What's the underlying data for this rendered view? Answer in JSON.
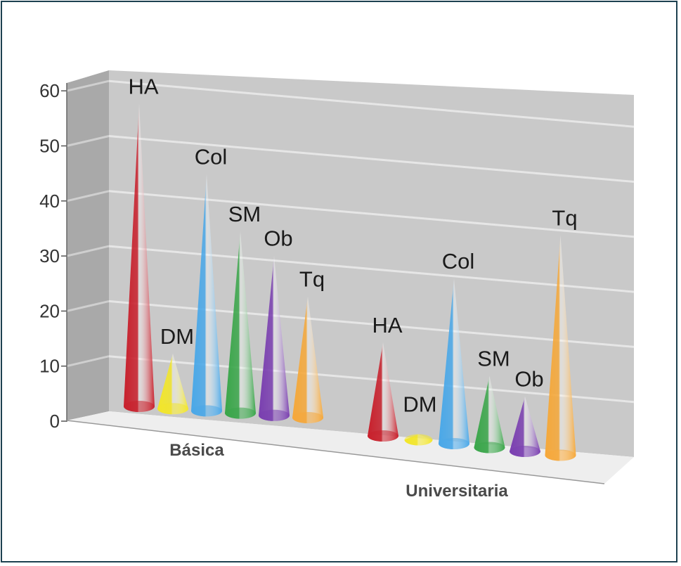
{
  "chart_data": {
    "type": "bar",
    "categories": [
      "Básica",
      "Universitaria"
    ],
    "series": [
      {
        "name": "HA",
        "values": [
          55,
          17
        ]
      },
      {
        "name": "DM",
        "values": [
          10,
          1
        ]
      },
      {
        "name": "Col",
        "values": [
          43,
          30
        ]
      },
      {
        "name": "SM",
        "values": [
          33,
          13
        ]
      },
      {
        "name": "Ob",
        "values": [
          29,
          10
        ]
      },
      {
        "name": "Tq",
        "values": [
          22,
          40
        ]
      }
    ],
    "series_colors": [
      "#c8202c",
      "#f2e62a",
      "#4aa8e8",
      "#3aa64a",
      "#7a3fb0",
      "#f5a83a"
    ],
    "yticks": [
      "0",
      "10",
      "20",
      "30",
      "40",
      "50",
      "60"
    ],
    "ylim": [
      0,
      60
    ],
    "title": "",
    "xlabel": "",
    "ylabel": "",
    "grid": true,
    "style": "3d-cone"
  }
}
